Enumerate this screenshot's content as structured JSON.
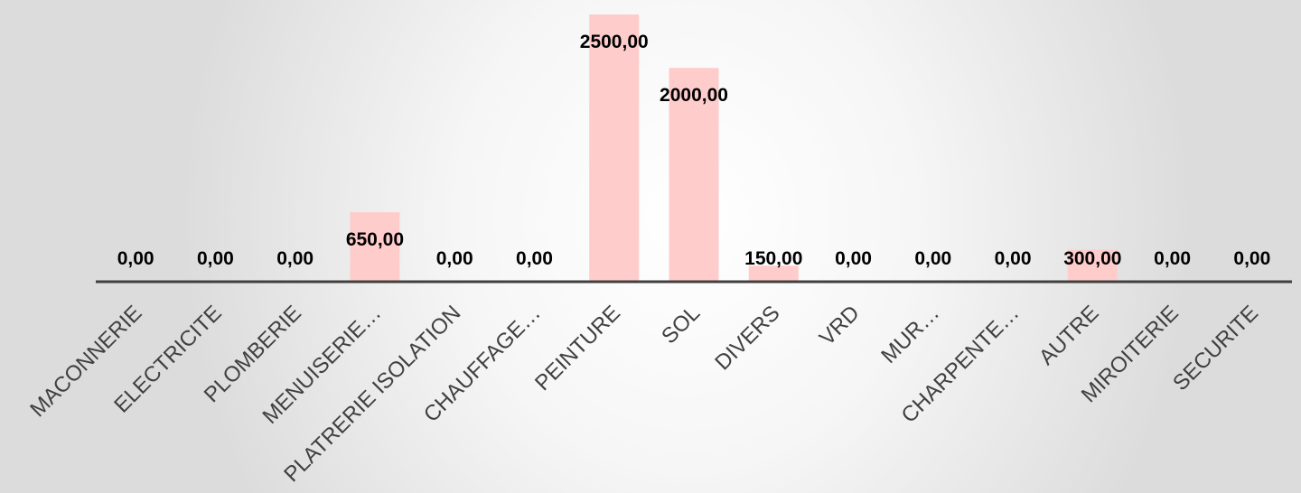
{
  "chart_data": {
    "type": "bar",
    "title": "",
    "xlabel": "",
    "ylabel": "",
    "categories": [
      "MACONNERIE",
      "ELECTRICITE",
      "PLOMBERIE",
      "MENUISERIE…",
      "PLATRERIE ISOLATION",
      "CHAUFFAGE…",
      "PEINTURE",
      "SOL",
      "DIVERS",
      "VRD",
      "MUR…",
      "CHARPENTE…",
      "AUTRE",
      "MIROITERIE",
      "SECURITE"
    ],
    "values": [
      0,
      0,
      0,
      650,
      0,
      0,
      2500,
      2000,
      150,
      0,
      0,
      0,
      300,
      0,
      0
    ],
    "value_labels": [
      "0,00",
      "0,00",
      "0,00",
      "650,00",
      "0,00",
      "0,00",
      "2500,00",
      "2000,00",
      "150,00",
      "0,00",
      "0,00",
      "0,00",
      "300,00",
      "0,00",
      "0,00"
    ],
    "ylim": [
      0,
      2500
    ],
    "grid": false,
    "legend": "none",
    "colors": {
      "bar": "#ffcccc",
      "axis": "#404040",
      "label": "#000000",
      "category": "#404040"
    }
  }
}
